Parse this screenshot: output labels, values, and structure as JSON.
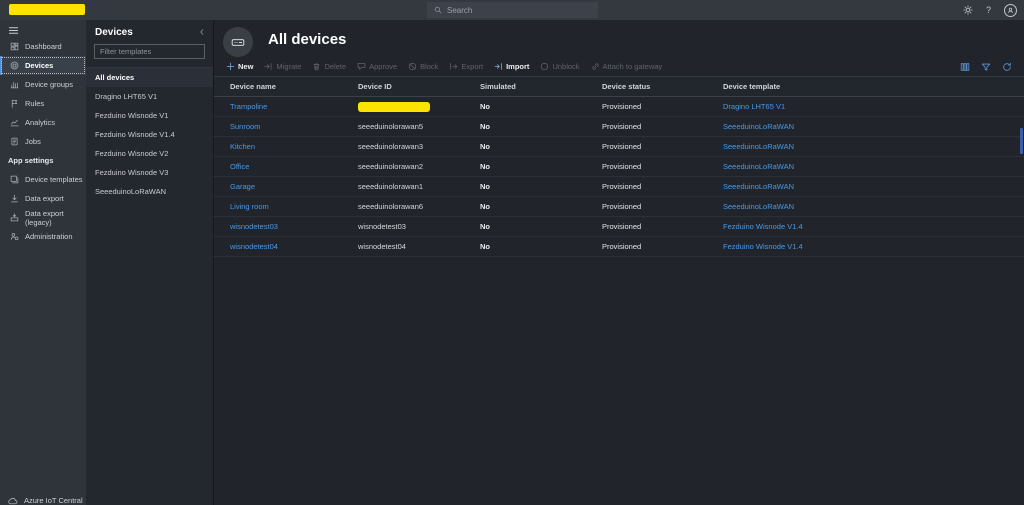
{
  "topbar": {
    "search_placeholder": "Search",
    "app_title_redacted": true
  },
  "sidebar": {
    "items": [
      {
        "label": "Dashboard",
        "icon": "dashboard-icon",
        "selected": false
      },
      {
        "label": "Devices",
        "icon": "devices-icon",
        "selected": true
      },
      {
        "label": "Device groups",
        "icon": "device-groups-icon",
        "selected": false
      },
      {
        "label": "Rules",
        "icon": "rules-icon",
        "selected": false
      },
      {
        "label": "Analytics",
        "icon": "analytics-icon",
        "selected": false
      },
      {
        "label": "Jobs",
        "icon": "jobs-icon",
        "selected": false
      }
    ],
    "section_label": "App settings",
    "section_items": [
      {
        "label": "Device templates",
        "icon": "device-templates-icon"
      },
      {
        "label": "Data export",
        "icon": "data-export-icon"
      },
      {
        "label": "Data export (legacy)",
        "icon": "data-export-legacy-icon"
      },
      {
        "label": "Administration",
        "icon": "administration-icon"
      }
    ],
    "footer_label": "Azure IoT Central"
  },
  "devices_panel": {
    "title": "Devices",
    "filter_placeholder": "Filter templates",
    "items": [
      {
        "label": "All devices",
        "selected": true
      },
      {
        "label": "Dragino LHT65 V1",
        "selected": false
      },
      {
        "label": "Fezduino Wisnode V1",
        "selected": false
      },
      {
        "label": "Fezduino Wisnode V1.4",
        "selected": false
      },
      {
        "label": "Fezduino Wisnode V2",
        "selected": false
      },
      {
        "label": "Fezduino Wisnode V3",
        "selected": false
      },
      {
        "label": "SeeeduinoLoRaWAN",
        "selected": false
      }
    ]
  },
  "main": {
    "page_title": "All devices",
    "toolbar": [
      {
        "label": "New",
        "icon": "plus-icon",
        "enabled": true
      },
      {
        "label": "Migrate",
        "icon": "migrate-icon",
        "enabled": false
      },
      {
        "label": "Delete",
        "icon": "trash-icon",
        "enabled": false
      },
      {
        "label": "Approve",
        "icon": "approve-icon",
        "enabled": false
      },
      {
        "label": "Block",
        "icon": "block-icon",
        "enabled": false
      },
      {
        "label": "Export",
        "icon": "export-icon",
        "enabled": false
      },
      {
        "label": "Import",
        "icon": "import-icon",
        "enabled": true
      },
      {
        "label": "Unblock",
        "icon": "unblock-icon",
        "enabled": false
      },
      {
        "label": "Attach to gateway",
        "icon": "attach-gateway-icon",
        "enabled": false
      }
    ],
    "view_icons": [
      "column-options-icon",
      "filter-icon",
      "refresh-icon"
    ],
    "table": {
      "columns": [
        "Device name",
        "Device ID",
        "Simulated",
        "Device status",
        "Device template"
      ],
      "rows": [
        {
          "name": "Trampoline",
          "id": "",
          "id_redacted": true,
          "simulated": "No",
          "status": "Provisioned",
          "template": "Dragino LHT65 V1"
        },
        {
          "name": "Sunroom",
          "id": "seeeduinolorawan5",
          "id_redacted": false,
          "simulated": "No",
          "status": "Provisioned",
          "template": "SeeeduinoLoRaWAN"
        },
        {
          "name": "Kitchen",
          "id": "seeeduinolorawan3",
          "id_redacted": false,
          "simulated": "No",
          "status": "Provisioned",
          "template": "SeeeduinoLoRaWAN"
        },
        {
          "name": "Office",
          "id": "seeeduinolorawan2",
          "id_redacted": false,
          "simulated": "No",
          "status": "Provisioned",
          "template": "SeeeduinoLoRaWAN"
        },
        {
          "name": "Garage",
          "id": "seeeduinolorawan1",
          "id_redacted": false,
          "simulated": "No",
          "status": "Provisioned",
          "template": "SeeeduinoLoRaWAN"
        },
        {
          "name": "Living room",
          "id": "seeeduinolorawan6",
          "id_redacted": false,
          "simulated": "No",
          "status": "Provisioned",
          "template": "SeeeduinoLoRaWAN"
        },
        {
          "name": "wisnodetest03",
          "id": "wisnodetest03",
          "id_redacted": false,
          "simulated": "No",
          "status": "Provisioned",
          "template": "Fezduino Wisnode V1.4"
        },
        {
          "name": "wisnodetest04",
          "id": "wisnodetest04",
          "id_redacted": false,
          "simulated": "No",
          "status": "Provisioned",
          "template": "Fezduino Wisnode V1.4"
        }
      ]
    }
  },
  "colors": {
    "accent_blue": "#4799e8",
    "redaction_yellow": "#ffe300",
    "selected_accent": "#4f93e0",
    "scrollbar_blue": "#3c5ea6"
  }
}
